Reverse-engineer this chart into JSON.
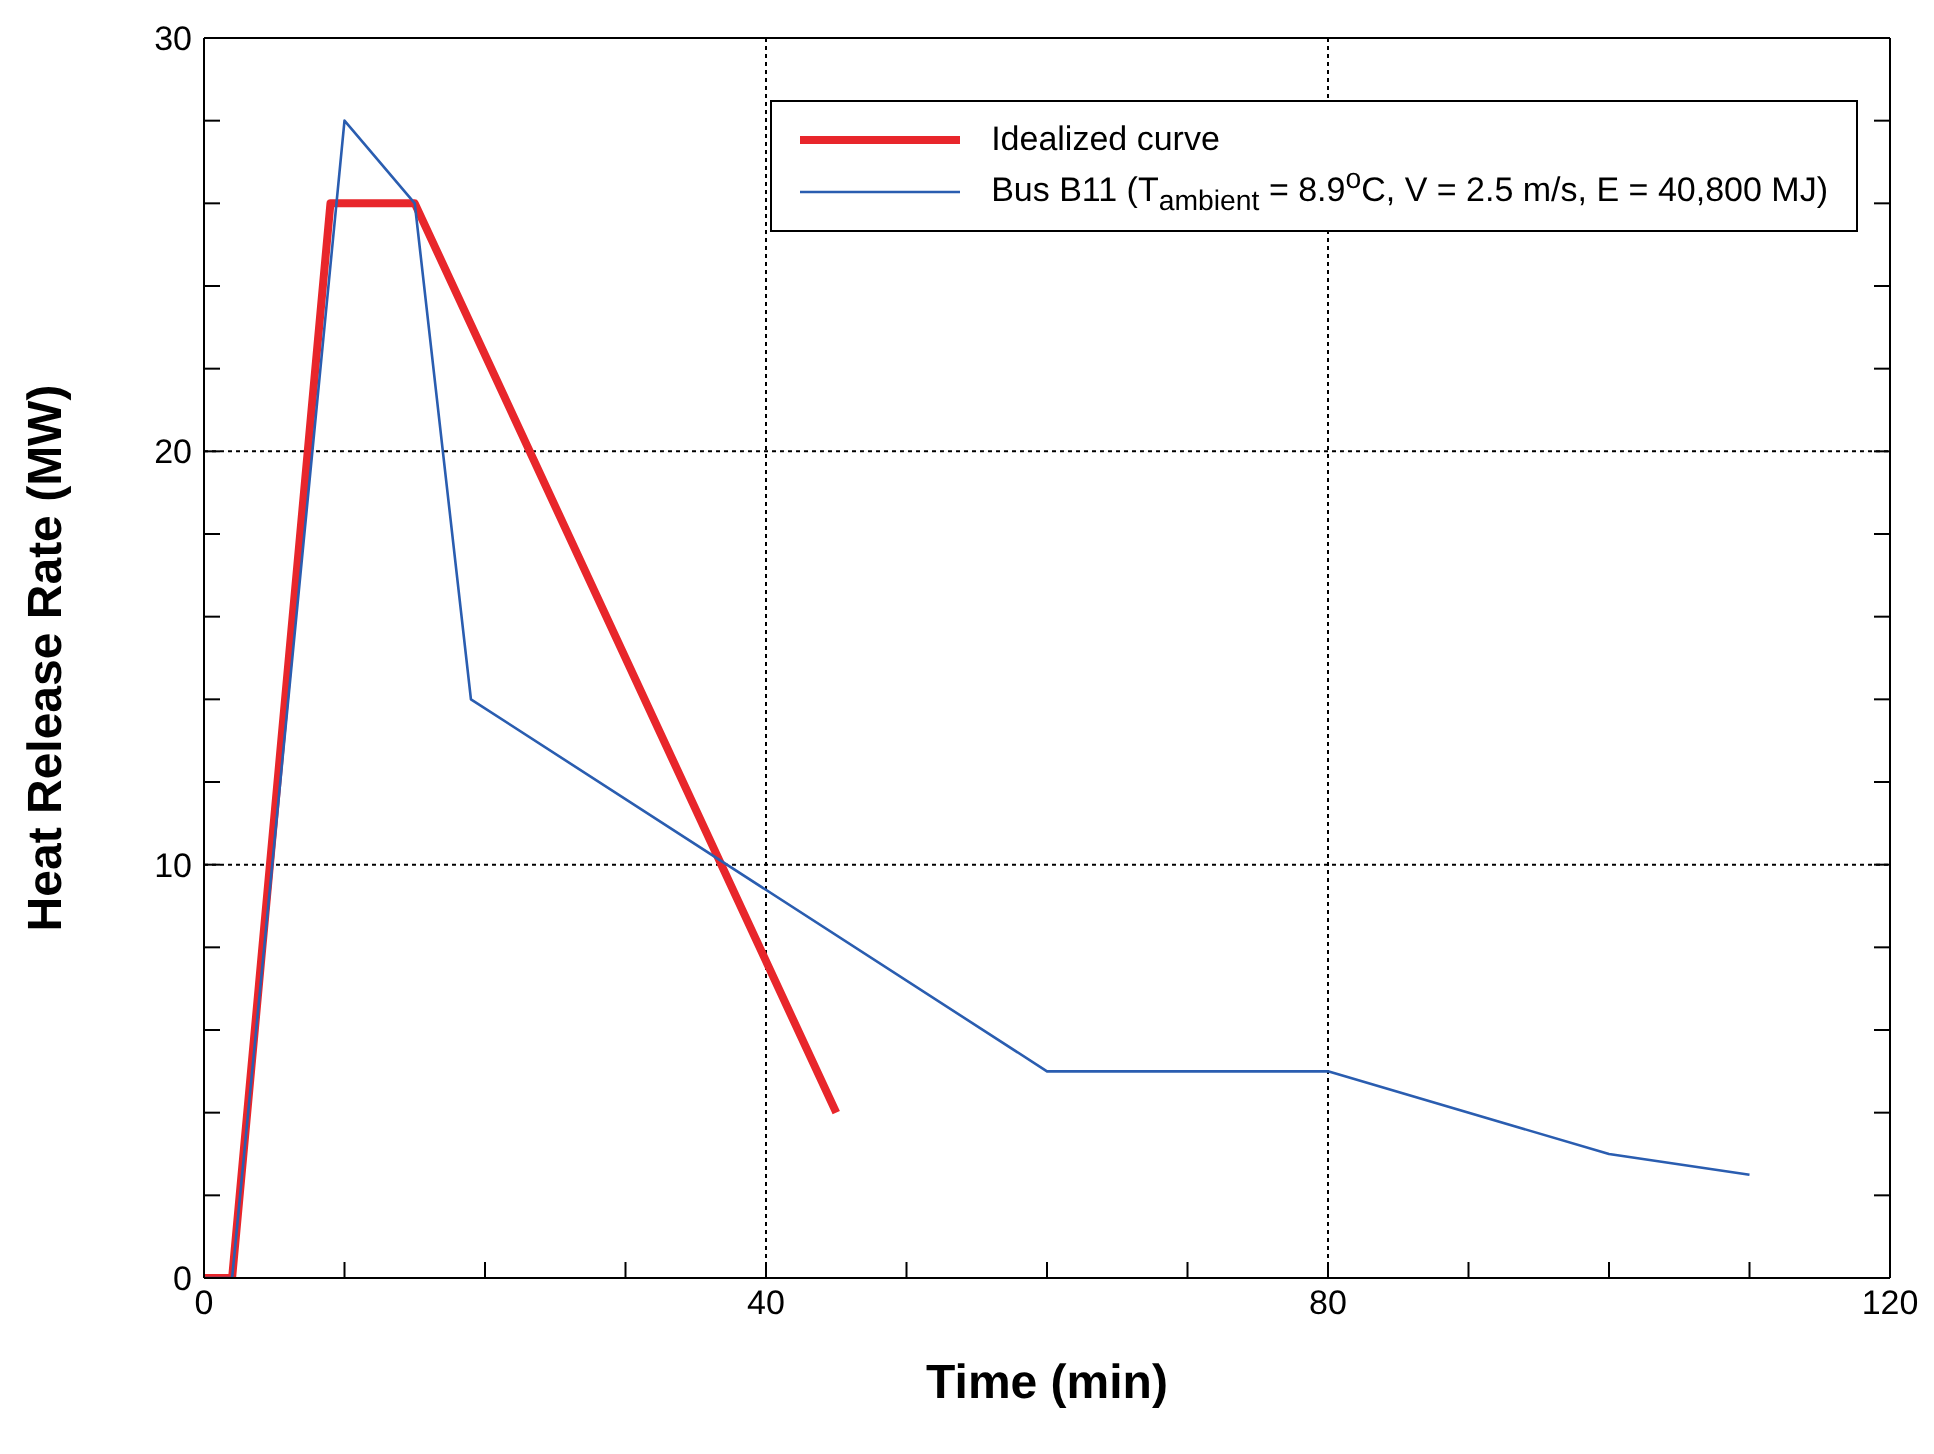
{
  "chart_data": {
    "type": "line",
    "xlabel": "Time (min)",
    "ylabel": "Heat Release Rate (MW)",
    "xlim": [
      0,
      120
    ],
    "ylim": [
      0,
      30
    ],
    "xticks": [
      0,
      {
        "value": 10,
        "label": null
      },
      {
        "value": 20,
        "label": null
      },
      {
        "value": 30,
        "label": null
      },
      40,
      {
        "value": 50,
        "label": null
      },
      {
        "value": 60,
        "label": null
      },
      {
        "value": 70,
        "label": null
      },
      80,
      {
        "value": 90,
        "label": null
      },
      {
        "value": 100,
        "label": null
      },
      {
        "value": 110,
        "label": null
      },
      120
    ],
    "yticks": [
      0,
      {
        "value": 2,
        "label": null
      },
      {
        "value": 4,
        "label": null
      },
      {
        "value": 6,
        "label": null
      },
      {
        "value": 8,
        "label": null
      },
      10,
      {
        "value": 12,
        "label": null
      },
      {
        "value": 14,
        "label": null
      },
      {
        "value": 16,
        "label": null
      },
      {
        "value": 18,
        "label": null
      },
      20,
      {
        "value": 22,
        "label": null
      },
      {
        "value": 24,
        "label": null
      },
      {
        "value": 26,
        "label": null
      },
      {
        "value": 28,
        "label": null
      },
      30
    ],
    "grid": true,
    "legend": "top right",
    "marker": "none",
    "series": [
      {
        "name": "Idealized curve",
        "color": "#e8262b",
        "x": [
          0,
          2,
          9,
          15,
          45
        ],
        "values": [
          0,
          0,
          26,
          26,
          4
        ]
      },
      {
        "name": "Bus B11 (T$_{ambient}$ = 8.9$^{o}$C, V = 2.5 m/s, E = 40,800 MJ)",
        "color": "#2a5db0",
        "x": [
          0,
          2,
          10,
          15,
          19,
          60,
          80,
          100,
          110
        ],
        "values": [
          0,
          0,
          28,
          26,
          14,
          5,
          5,
          3,
          2.5
        ]
      }
    ]
  }
}
